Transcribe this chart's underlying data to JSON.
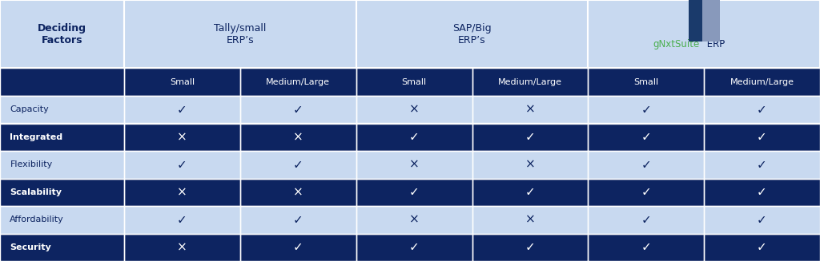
{
  "bg_color": "#c8d9f0",
  "header_bg": "#0d2461",
  "header_text_color": "#ffffff",
  "row_light_bg": "#c8d9f0",
  "row_dark_bg": "#0d2461",
  "row_light_text": "#0d2461",
  "deciding_factors_label": "Deciding\nFactors",
  "col_group_labels": [
    "Tally/small\nERP’s",
    "SAP/Big\nERP’s",
    "gNxtSuite ERP"
  ],
  "col_sub_labels": [
    "Small",
    "Medium/Large",
    "Small",
    "Medium/Large",
    "Small",
    "Medium/Large"
  ],
  "row_labels": [
    "Capacity",
    "Integrated",
    "Flexibility",
    "Scalability",
    "Affordability",
    "Security"
  ],
  "check": "✓",
  "cross": "×",
  "data": [
    [
      "✓",
      "✓",
      "×",
      "×",
      "✓",
      "✓"
    ],
    [
      "×",
      "×",
      "✓",
      "✓",
      "✓",
      "✓"
    ],
    [
      "✓",
      "✓",
      "×",
      "×",
      "✓",
      "✓"
    ],
    [
      "×",
      "×",
      "✓",
      "✓",
      "✓",
      "✓"
    ],
    [
      "✓",
      "✓",
      "×",
      "×",
      "✓",
      "✓"
    ],
    [
      "×",
      "✓",
      "✓",
      "✓",
      "✓",
      "✓"
    ]
  ],
  "row_is_dark": [
    false,
    true,
    false,
    true,
    false,
    true
  ],
  "gnxt_green": "#4caf50",
  "gnxt_blue": "#0d2461",
  "figsize": [
    10.24,
    3.27
  ],
  "dpi": 100
}
